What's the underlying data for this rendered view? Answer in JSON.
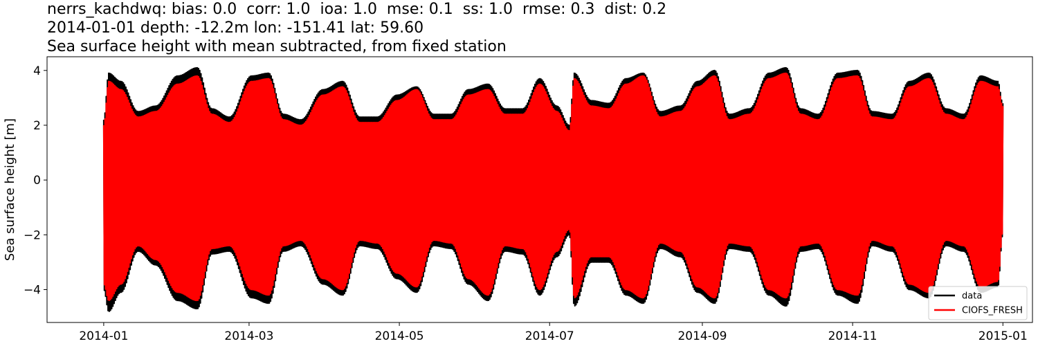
{
  "chart_data": {
    "type": "line",
    "title_lines": [
      "nerrs_kachdwq: bias: 0.0  corr: 1.0  ioa: 1.0  mse: 0.1  ss: 1.0  rmse: 0.3  dist: 0.2",
      "2014-01-01 depth: -12.2m lon: -151.41 lat: 59.60",
      "Sea surface height with mean subtracted, from fixed station"
    ],
    "xlabel": "",
    "ylabel": "Sea surface height [m]",
    "x_range": [
      "2014-01-01",
      "2015-01-01"
    ],
    "xlim": [
      "2013-12-09",
      "2015-01-13"
    ],
    "ylim": [
      -5.2,
      4.5
    ],
    "x_ticks": [
      "2014-01",
      "2014-03",
      "2014-05",
      "2014-07",
      "2014-09",
      "2014-11",
      "2015-01"
    ],
    "y_ticks": [
      -4,
      -2,
      0,
      2,
      4
    ],
    "y_tick_labels": [
      "−4",
      "−2",
      "0",
      "2",
      "4"
    ],
    "grid": false,
    "legend_position": "bottom-right",
    "series": [
      {
        "name": "data",
        "color": "#000000",
        "envelope": {
          "dates": [
            "2014-01-01",
            "2014-01-03",
            "2014-01-08",
            "2014-01-15",
            "2014-01-22",
            "2014-01-31",
            "2014-02-08",
            "2014-02-14",
            "2014-02-21",
            "2014-03-02",
            "2014-03-09",
            "2014-03-15",
            "2014-03-22",
            "2014-03-31",
            "2014-04-08",
            "2014-04-15",
            "2014-04-22",
            "2014-04-30",
            "2014-05-08",
            "2014-05-15",
            "2014-05-22",
            "2014-05-29",
            "2014-06-06",
            "2014-06-13",
            "2014-06-20",
            "2014-06-27",
            "2014-07-04",
            "2014-07-09",
            "2014-07-11",
            "2014-07-18",
            "2014-07-25",
            "2014-08-01",
            "2014-08-08",
            "2014-08-15",
            "2014-08-23",
            "2014-08-30",
            "2014-09-06",
            "2014-09-12",
            "2014-09-20",
            "2014-09-28",
            "2014-10-05",
            "2014-10-11",
            "2014-10-18",
            "2014-10-26",
            "2014-11-03",
            "2014-11-09",
            "2014-11-17",
            "2014-11-24",
            "2014-12-02",
            "2014-12-09",
            "2014-12-16",
            "2014-12-23",
            "2014-12-30",
            "2015-01-01"
          ],
          "high": [
            2.2,
            3.9,
            3.6,
            2.5,
            2.7,
            3.8,
            4.1,
            2.6,
            2.3,
            3.8,
            3.9,
            2.4,
            2.2,
            3.3,
            3.6,
            2.3,
            2.3,
            3.1,
            3.4,
            2.4,
            2.4,
            3.3,
            3.5,
            2.6,
            2.6,
            3.7,
            2.7,
            2.0,
            3.9,
            2.9,
            2.8,
            3.7,
            3.9,
            2.5,
            2.7,
            3.6,
            4.0,
            2.4,
            2.6,
            3.9,
            4.1,
            2.6,
            2.4,
            3.9,
            4.0,
            2.5,
            2.4,
            3.6,
            3.9,
            2.6,
            2.4,
            3.8,
            3.6,
            2.8
          ],
          "low": [
            -4.0,
            -4.8,
            -4.1,
            -2.6,
            -3.1,
            -4.4,
            -4.7,
            -2.7,
            -2.6,
            -4.3,
            -4.5,
            -2.6,
            -2.4,
            -3.8,
            -4.2,
            -2.4,
            -2.5,
            -3.6,
            -4.1,
            -2.4,
            -2.5,
            -3.8,
            -4.4,
            -2.6,
            -2.7,
            -4.2,
            -2.8,
            -2.0,
            -4.6,
            -3.0,
            -3.0,
            -4.2,
            -4.5,
            -2.5,
            -2.8,
            -4.1,
            -4.5,
            -2.5,
            -2.6,
            -4.2,
            -4.6,
            -2.6,
            -2.5,
            -4.2,
            -4.5,
            -2.4,
            -2.6,
            -4.0,
            -4.3,
            -2.4,
            -2.6,
            -4.1,
            -3.9,
            -2.0
          ]
        }
      },
      {
        "name": "CIOFS_FRESH",
        "color": "#ff0000",
        "envelope": {
          "dates": [
            "2014-01-01",
            "2014-01-03",
            "2014-01-08",
            "2014-01-15",
            "2014-01-22",
            "2014-01-31",
            "2014-02-08",
            "2014-02-14",
            "2014-02-21",
            "2014-03-02",
            "2014-03-09",
            "2014-03-15",
            "2014-03-22",
            "2014-03-31",
            "2014-04-08",
            "2014-04-15",
            "2014-04-22",
            "2014-04-30",
            "2014-05-08",
            "2014-05-15",
            "2014-05-22",
            "2014-05-29",
            "2014-06-06",
            "2014-06-13",
            "2014-06-20",
            "2014-06-27",
            "2014-07-04",
            "2014-07-09",
            "2014-07-11",
            "2014-07-18",
            "2014-07-25",
            "2014-08-01",
            "2014-08-08",
            "2014-08-15",
            "2014-08-23",
            "2014-08-30",
            "2014-09-06",
            "2014-09-12",
            "2014-09-20",
            "2014-09-28",
            "2014-10-05",
            "2014-10-11",
            "2014-10-18",
            "2014-10-26",
            "2014-11-03",
            "2014-11-09",
            "2014-11-17",
            "2014-11-24",
            "2014-12-02",
            "2014-12-09",
            "2014-12-16",
            "2014-12-23",
            "2014-12-30",
            "2015-01-01"
          ],
          "high": [
            2.0,
            3.6,
            3.3,
            2.3,
            2.5,
            3.5,
            3.8,
            2.4,
            2.1,
            3.6,
            3.7,
            2.2,
            2.0,
            3.1,
            3.4,
            2.1,
            2.1,
            2.9,
            3.3,
            2.2,
            2.2,
            3.1,
            3.3,
            2.4,
            2.4,
            3.5,
            2.5,
            1.8,
            3.7,
            2.7,
            2.6,
            3.5,
            3.8,
            2.3,
            2.5,
            3.4,
            3.8,
            2.2,
            2.4,
            3.7,
            3.9,
            2.4,
            2.2,
            3.7,
            3.8,
            2.3,
            2.2,
            3.4,
            3.7,
            2.4,
            2.2,
            3.6,
            3.4,
            2.7
          ],
          "low": [
            -3.8,
            -4.4,
            -3.8,
            -2.4,
            -2.9,
            -4.1,
            -4.4,
            -2.5,
            -2.4,
            -4.0,
            -4.2,
            -2.4,
            -2.2,
            -3.6,
            -4.0,
            -2.2,
            -2.3,
            -3.4,
            -3.9,
            -2.2,
            -2.3,
            -3.6,
            -4.2,
            -2.4,
            -2.5,
            -4.0,
            -2.6,
            -1.8,
            -4.3,
            -2.8,
            -2.8,
            -4.0,
            -4.3,
            -2.3,
            -2.6,
            -3.9,
            -4.3,
            -2.3,
            -2.4,
            -4.0,
            -4.3,
            -2.4,
            -2.3,
            -4.0,
            -4.2,
            -2.2,
            -2.4,
            -3.8,
            -4.1,
            -2.2,
            -2.4,
            -3.9,
            -3.7,
            -1.9
          ]
        }
      }
    ]
  }
}
